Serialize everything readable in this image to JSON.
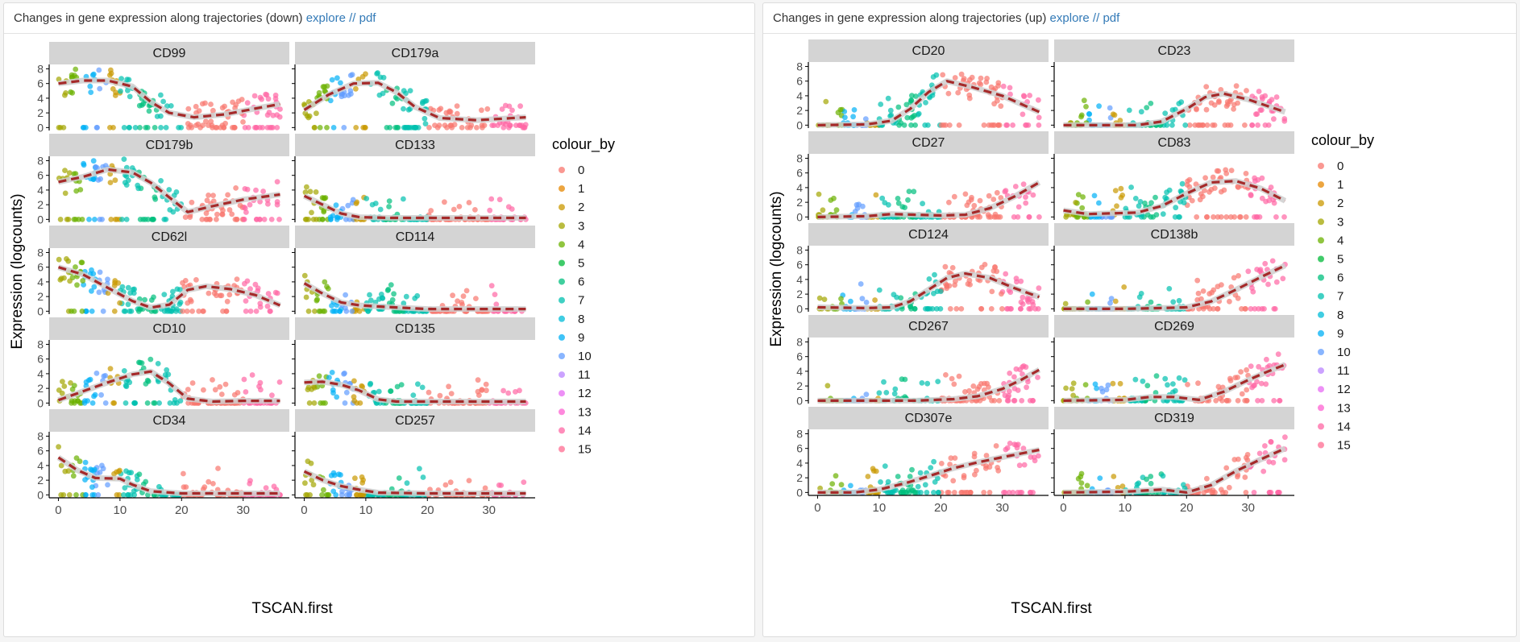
{
  "panels": [
    {
      "title": "Changes in gene expression along trajectories (down)",
      "explore_label": "explore",
      "separator": "//",
      "pdf_label": "pdf"
    },
    {
      "title": "Changes in gene expression along trajectories (up)",
      "explore_label": "explore",
      "separator": "//",
      "pdf_label": "pdf"
    }
  ],
  "chart_data": [
    {
      "type": "scatter",
      "title": "Changes in gene expression along trajectories (down)",
      "xlabel": "TSCAN.first",
      "ylabel": "Expression (logcounts)",
      "xlim": [
        -1.5,
        37.5
      ],
      "ylim": [
        -0.4,
        8.6
      ],
      "xticks": [
        0,
        10,
        20,
        30
      ],
      "yticks": [
        0,
        2,
        4,
        6,
        8
      ],
      "legend": {
        "title": "colour_by",
        "position": "right",
        "entries": [
          "0",
          "1",
          "2",
          "3",
          "4",
          "5",
          "6",
          "7",
          "8",
          "9",
          "10",
          "11",
          "12",
          "13",
          "14",
          "15"
        ]
      },
      "facets": [
        {
          "name": "CD99",
          "trend": [
            [
              0,
              6.0
            ],
            [
              4,
              6.4
            ],
            [
              8,
              6.4
            ],
            [
              12,
              5.6
            ],
            [
              15,
              3.5
            ],
            [
              18,
              2.0
            ],
            [
              22,
              1.4
            ],
            [
              27,
              1.8
            ],
            [
              32,
              2.6
            ],
            [
              36,
              3.2
            ]
          ]
        },
        {
          "name": "CD179a",
          "trend": [
            [
              0,
              2.4
            ],
            [
              4,
              4.5
            ],
            [
              8,
              6.0
            ],
            [
              12,
              6.1
            ],
            [
              15,
              4.8
            ],
            [
              18,
              2.8
            ],
            [
              22,
              1.3
            ],
            [
              28,
              1.0
            ],
            [
              36,
              1.4
            ]
          ]
        },
        {
          "name": "CD179b",
          "trend": [
            [
              0,
              5.1
            ],
            [
              4,
              5.8
            ],
            [
              8,
              6.8
            ],
            [
              12,
              6.4
            ],
            [
              15,
              5.0
            ],
            [
              18,
              3.0
            ],
            [
              21,
              1.0
            ],
            [
              25,
              1.8
            ],
            [
              30,
              2.7
            ],
            [
              36,
              3.4
            ]
          ]
        },
        {
          "name": "CD133",
          "trend": [
            [
              0,
              3.2
            ],
            [
              3,
              2.0
            ],
            [
              6,
              0.8
            ],
            [
              9,
              0.3
            ],
            [
              14,
              0.2
            ],
            [
              36,
              0.2
            ]
          ]
        },
        {
          "name": "CD62l",
          "trend": [
            [
              0,
              6.0
            ],
            [
              4,
              5.0
            ],
            [
              8,
              3.2
            ],
            [
              12,
              1.4
            ],
            [
              15,
              0.5
            ],
            [
              18,
              0.9
            ],
            [
              21,
              2.9
            ],
            [
              24,
              3.4
            ],
            [
              28,
              3.0
            ],
            [
              32,
              2.2
            ],
            [
              36,
              0.8
            ]
          ]
        },
        {
          "name": "CD114",
          "trend": [
            [
              0,
              3.8
            ],
            [
              3,
              2.4
            ],
            [
              6,
              1.2
            ],
            [
              9,
              0.8
            ],
            [
              13,
              0.6
            ],
            [
              20,
              0.3
            ],
            [
              36,
              0.3
            ]
          ]
        },
        {
          "name": "CD10",
          "trend": [
            [
              0,
              0.4
            ],
            [
              4,
              1.6
            ],
            [
              8,
              2.8
            ],
            [
              12,
              3.9
            ],
            [
              15,
              4.3
            ],
            [
              18,
              2.7
            ],
            [
              21,
              0.6
            ],
            [
              25,
              0.2
            ],
            [
              30,
              0.3
            ],
            [
              36,
              0.3
            ]
          ]
        },
        {
          "name": "CD135",
          "trend": [
            [
              0,
              2.8
            ],
            [
              3,
              2.9
            ],
            [
              6,
              2.5
            ],
            [
              9,
              1.7
            ],
            [
              12,
              0.5
            ],
            [
              15,
              0.2
            ],
            [
              36,
              0.2
            ]
          ]
        },
        {
          "name": "CD34",
          "trend": [
            [
              0,
              5.1
            ],
            [
              3,
              3.4
            ],
            [
              6,
              2.3
            ],
            [
              10,
              2.2
            ],
            [
              12,
              1.4
            ],
            [
              15,
              0.5
            ],
            [
              20,
              0.2
            ],
            [
              36,
              0.2
            ]
          ]
        },
        {
          "name": "CD257",
          "trend": [
            [
              0,
              3.2
            ],
            [
              3,
              2.0
            ],
            [
              6,
              1.2
            ],
            [
              9,
              0.7
            ],
            [
              12,
              0.3
            ],
            [
              20,
              0.2
            ],
            [
              36,
              0.2
            ]
          ]
        }
      ]
    },
    {
      "type": "scatter",
      "title": "Changes in gene expression along trajectories (up)",
      "xlabel": "TSCAN.first",
      "ylabel": "Expression (logcounts)",
      "xlim": [
        -1.5,
        37.5
      ],
      "ylim": [
        -0.4,
        8.6
      ],
      "xticks": [
        0,
        10,
        20,
        30
      ],
      "yticks": [
        0,
        2,
        4,
        6,
        8
      ],
      "legend": {
        "title": "colour_by",
        "position": "right",
        "entries": [
          "0",
          "1",
          "2",
          "3",
          "4",
          "5",
          "6",
          "7",
          "8",
          "9",
          "10",
          "11",
          "12",
          "13",
          "14",
          "15"
        ]
      },
      "facets": [
        {
          "name": "CD20",
          "trend": [
            [
              0,
              0.0
            ],
            [
              8,
              0.1
            ],
            [
              12,
              0.6
            ],
            [
              15,
              2.2
            ],
            [
              18,
              4.5
            ],
            [
              21,
              6.0
            ],
            [
              25,
              5.2
            ],
            [
              30,
              4.0
            ],
            [
              36,
              1.8
            ]
          ]
        },
        {
          "name": "CD23",
          "trend": [
            [
              0,
              0.0
            ],
            [
              12,
              0.0
            ],
            [
              16,
              0.5
            ],
            [
              20,
              2.2
            ],
            [
              23,
              3.8
            ],
            [
              26,
              4.3
            ],
            [
              30,
              3.5
            ],
            [
              36,
              1.8
            ]
          ]
        },
        {
          "name": "CD27",
          "trend": [
            [
              0,
              0.0
            ],
            [
              8,
              0.1
            ],
            [
              12,
              0.4
            ],
            [
              20,
              0.2
            ],
            [
              24,
              0.3
            ],
            [
              28,
              1.2
            ],
            [
              32,
              2.8
            ],
            [
              36,
              4.7
            ]
          ]
        },
        {
          "name": "CD83",
          "trend": [
            [
              0,
              0.9
            ],
            [
              4,
              0.4
            ],
            [
              8,
              0.5
            ],
            [
              12,
              0.6
            ],
            [
              16,
              1.5
            ],
            [
              20,
              3.2
            ],
            [
              24,
              4.7
            ],
            [
              28,
              4.9
            ],
            [
              32,
              3.9
            ],
            [
              36,
              2.2
            ]
          ]
        },
        {
          "name": "CD124",
          "trend": [
            [
              0,
              0.2
            ],
            [
              8,
              0.1
            ],
            [
              12,
              0.2
            ],
            [
              15,
              1.0
            ],
            [
              18,
              2.6
            ],
            [
              21,
              4.2
            ],
            [
              24,
              4.8
            ],
            [
              28,
              4.2
            ],
            [
              32,
              2.8
            ],
            [
              36,
              1.6
            ]
          ]
        },
        {
          "name": "CD138b",
          "trend": [
            [
              0,
              0.0
            ],
            [
              10,
              0.0
            ],
            [
              16,
              0.1
            ],
            [
              20,
              0.2
            ],
            [
              24,
              1.0
            ],
            [
              28,
              2.6
            ],
            [
              32,
              4.3
            ],
            [
              36,
              5.9
            ]
          ]
        },
        {
          "name": "CD267",
          "trend": [
            [
              0,
              0.0
            ],
            [
              16,
              0.0
            ],
            [
              22,
              0.2
            ],
            [
              26,
              0.6
            ],
            [
              30,
              1.6
            ],
            [
              33,
              2.8
            ],
            [
              36,
              4.2
            ]
          ]
        },
        {
          "name": "CD269",
          "trend": [
            [
              0,
              0.0
            ],
            [
              10,
              0.1
            ],
            [
              14,
              0.5
            ],
            [
              18,
              0.5
            ],
            [
              22,
              0.1
            ],
            [
              26,
              1.2
            ],
            [
              30,
              2.8
            ],
            [
              33,
              3.9
            ],
            [
              36,
              4.9
            ]
          ]
        },
        {
          "name": "CD307e",
          "trend": [
            [
              0,
              0.0
            ],
            [
              6,
              0.0
            ],
            [
              10,
              0.4
            ],
            [
              14,
              1.2
            ],
            [
              18,
              2.2
            ],
            [
              22,
              3.3
            ],
            [
              26,
              4.1
            ],
            [
              30,
              4.8
            ],
            [
              33,
              5.3
            ],
            [
              36,
              5.8
            ]
          ]
        },
        {
          "name": "CD319",
          "trend": [
            [
              0,
              0.0
            ],
            [
              10,
              0.1
            ],
            [
              16,
              0.4
            ],
            [
              20,
              0.0
            ],
            [
              24,
              1.0
            ],
            [
              28,
              2.9
            ],
            [
              32,
              4.5
            ],
            [
              36,
              6.0
            ]
          ]
        }
      ]
    }
  ],
  "colors": {
    "clusters": [
      "#F8766D",
      "#E58700",
      "#C99800",
      "#A3A500",
      "#6BB100",
      "#00BA38",
      "#00BF7D",
      "#00C0AF",
      "#00BCD8",
      "#00B0F6",
      "#619CFF",
      "#B983FF",
      "#E76BF3",
      "#FD61D1",
      "#FF67A4",
      "#FF6C91"
    ],
    "strip_bg": "#d4d4d4",
    "trend_line": "#a52a2a",
    "trend_band": "#cfcfcf",
    "link": "#337ab7"
  }
}
